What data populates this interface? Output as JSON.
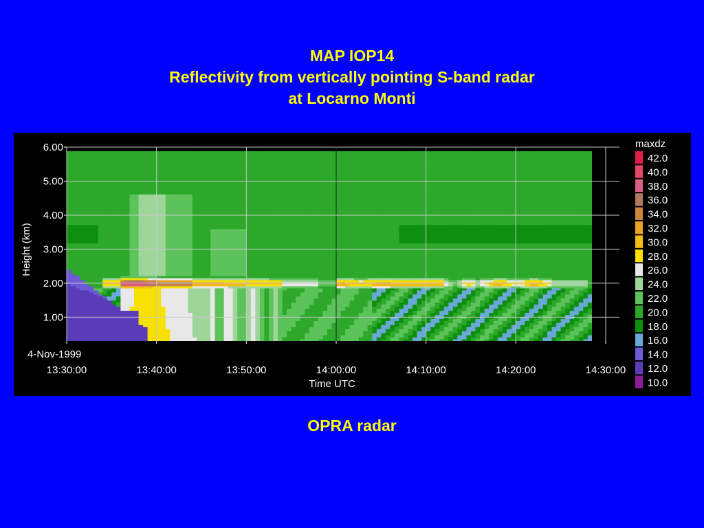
{
  "slide": {
    "title_line1": "MAP IOP14",
    "title_line2": "Reflectivity from vertically pointing S-band radar",
    "title_line3": "at Locarno Monti",
    "caption": "OPRA radar"
  },
  "colors": {
    "background": "#0000ff",
    "title_text": "#ffff00",
    "panel": "#000000"
  },
  "chart_data": {
    "type": "heatmap",
    "title": "",
    "xlabel": "Time UTC",
    "ylabel": "Height (km)",
    "date_label": "4-Nov-1999",
    "x_ticks": [
      "13:30:00",
      "13:40:00",
      "13:50:00",
      "14:00:00",
      "14:10:00",
      "14:20:00",
      "14:30:00"
    ],
    "y_ticks": [
      "1.00",
      "2.00",
      "3.00",
      "4.00",
      "5.00",
      "6.00"
    ],
    "xlim": [
      "13:30:00",
      "14:30:00"
    ],
    "ylim": [
      0.3,
      6.0
    ],
    "grid": true,
    "colorbar": {
      "label": "maxdz",
      "levels": [
        "42.0",
        "40.0",
        "38.0",
        "36.0",
        "34.0",
        "32.0",
        "30.0",
        "28.0",
        "26.0",
        "24.0",
        "22.0",
        "20.0",
        "18.0",
        "16.0",
        "14.0",
        "12.0",
        "10.0"
      ],
      "colors": [
        "#e01c48",
        "#e6456a",
        "#d95f86",
        "#b07a5e",
        "#c9873c",
        "#e8a428",
        "#f5bd14",
        "#f6e100",
        "#e8e8e8",
        "#9ed69a",
        "#5cc25a",
        "#2da82a",
        "#0f8f0f",
        "#6aa8d8",
        "#6f5ad8",
        "#5a3cb8",
        "#8a1e96"
      ]
    },
    "features": {
      "bright_band_height_km": 2.0,
      "bright_band_max_dbz": 42.0,
      "bright_band_max_time": "13:37:30",
      "echo_top_km": 5.9
    }
  }
}
